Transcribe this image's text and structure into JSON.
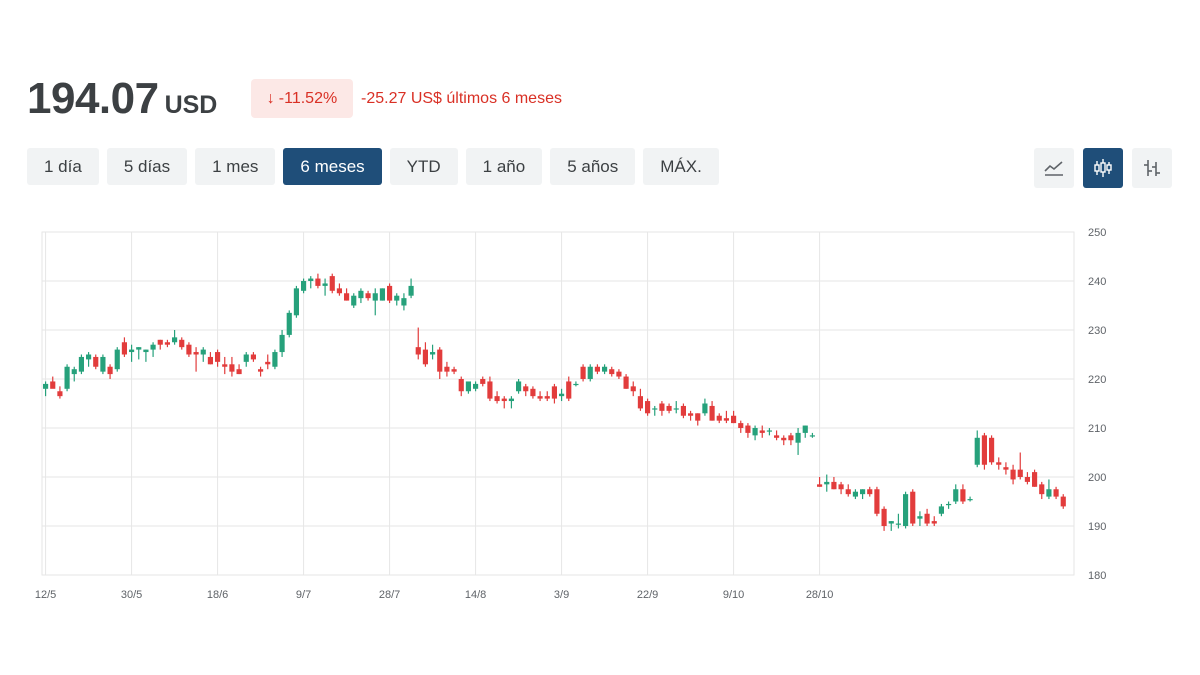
{
  "header": {
    "price": "194.07",
    "currency": "USD",
    "change_pct": "-11.52%",
    "change_text": "-25.27 US$ últimos 6 meses",
    "change_color": "#d93025"
  },
  "ranges": [
    "1 día",
    "5 días",
    "1 mes",
    "6 meses",
    "YTD",
    "1 año",
    "5 años",
    "MÁX."
  ],
  "active_range": "6 meses",
  "chart_types": [
    {
      "icon": "line-chart-icon",
      "active": false
    },
    {
      "icon": "candlestick-icon",
      "active": true
    },
    {
      "icon": "ohlc-bar-icon",
      "active": false
    }
  ],
  "colors": {
    "up": "#26a17b",
    "down": "#e23c3c",
    "accent": "#1f4e79",
    "grid": "#e6e6e6"
  },
  "chart_data": {
    "type": "candlestick",
    "y_ticks": [
      180,
      190,
      200,
      210,
      220,
      230,
      240,
      250
    ],
    "ylim": [
      180,
      250
    ],
    "x_ticks": [
      {
        "label": "12/5",
        "index": 0
      },
      {
        "label": "30/5",
        "index": 12
      },
      {
        "label": "18/6",
        "index": 24
      },
      {
        "label": "9/7",
        "index": 36
      },
      {
        "label": "28/7",
        "index": 48
      },
      {
        "label": "14/8",
        "index": 60
      },
      {
        "label": "3/9",
        "index": 72
      },
      {
        "label": "22/9",
        "index": 84
      },
      {
        "label": "9/10",
        "index": 96
      },
      {
        "label": "28/10",
        "index": 108
      }
    ],
    "candles": [
      [
        218.0,
        219.5,
        216.5,
        219.0
      ],
      [
        219.5,
        220.5,
        218.5,
        218.0
      ],
      [
        217.5,
        218.5,
        216.0,
        216.5
      ],
      [
        218.0,
        223.0,
        217.5,
        222.5
      ],
      [
        221.0,
        222.5,
        219.5,
        222.0
      ],
      [
        221.5,
        225.0,
        221.0,
        224.5
      ],
      [
        224.0,
        225.5,
        222.5,
        225.0
      ],
      [
        224.5,
        225.0,
        222.0,
        222.5
      ],
      [
        221.5,
        225.0,
        221.0,
        224.5
      ],
      [
        222.5,
        223.0,
        220.0,
        221.0
      ],
      [
        222.0,
        226.5,
        221.5,
        226.0
      ],
      [
        227.5,
        228.5,
        224.5,
        225.0
      ],
      [
        225.5,
        227.0,
        223.5,
        226.0
      ],
      [
        226.0,
        226.5,
        224.0,
        226.5
      ],
      [
        225.5,
        226.0,
        223.5,
        226.0
      ],
      [
        226.0,
        227.5,
        224.5,
        227.0
      ],
      [
        228.0,
        228.0,
        226.0,
        227.0
      ],
      [
        227.5,
        228.0,
        226.5,
        227.0
      ],
      [
        227.5,
        230.0,
        227.0,
        228.5
      ],
      [
        228.0,
        228.5,
        226.0,
        226.5
      ],
      [
        227.0,
        227.5,
        224.5,
        225.0
      ],
      [
        225.5,
        226.5,
        221.5,
        225.0
      ],
      [
        225.0,
        226.5,
        223.5,
        226.0
      ],
      [
        224.5,
        225.5,
        223.0,
        223.0
      ],
      [
        225.5,
        226.0,
        222.5,
        223.5
      ],
      [
        223.0,
        224.5,
        221.0,
        222.5
      ],
      [
        223.0,
        224.5,
        220.5,
        221.5
      ],
      [
        222.0,
        223.0,
        221.0,
        221.0
      ],
      [
        223.5,
        225.5,
        222.5,
        225.0
      ],
      [
        225.0,
        225.5,
        223.5,
        224.0
      ],
      [
        222.0,
        222.5,
        220.5,
        221.5
      ],
      [
        223.5,
        225.0,
        222.0,
        223.0
      ],
      [
        222.5,
        226.0,
        222.0,
        225.5
      ],
      [
        225.5,
        230.0,
        224.5,
        229.0
      ],
      [
        229.0,
        234.0,
        228.5,
        233.5
      ],
      [
        233.0,
        239.0,
        232.5,
        238.5
      ],
      [
        238.0,
        240.5,
        237.5,
        240.0
      ],
      [
        240.0,
        241.0,
        238.5,
        240.5
      ],
      [
        240.5,
        241.5,
        238.5,
        239.0
      ],
      [
        239.0,
        240.5,
        237.0,
        239.5
      ],
      [
        241.0,
        241.5,
        237.5,
        238.0
      ],
      [
        238.5,
        239.5,
        237.0,
        237.5
      ],
      [
        237.5,
        238.5,
        236.0,
        236.0
      ],
      [
        235.0,
        237.5,
        234.5,
        237.0
      ],
      [
        236.5,
        238.5,
        235.5,
        238.0
      ],
      [
        237.5,
        238.0,
        236.0,
        236.5
      ],
      [
        236.0,
        238.5,
        233.0,
        237.5
      ],
      [
        236.0,
        238.5,
        236.0,
        238.5
      ],
      [
        239.0,
        239.5,
        235.5,
        236.0
      ],
      [
        236.0,
        237.5,
        235.0,
        237.0
      ],
      [
        235.0,
        237.5,
        234.0,
        236.5
      ],
      [
        237.0,
        240.5,
        236.5,
        239.0
      ]
    ],
    "candles2": [
      [
        226.5,
        230.5,
        224.0,
        225.0
      ],
      [
        226.0,
        227.5,
        222.5,
        223.0
      ],
      [
        225.0,
        227.0,
        224.0,
        225.5
      ],
      [
        226.0,
        226.5,
        220.0,
        221.5
      ],
      [
        222.5,
        223.5,
        220.5,
        221.5
      ],
      [
        222.0,
        222.5,
        221.0,
        221.5
      ],
      [
        220.0,
        220.5,
        216.5,
        217.5
      ],
      [
        217.5,
        219.0,
        217.0,
        219.5
      ],
      [
        218.0,
        219.5,
        217.5,
        219.0
      ],
      [
        220.0,
        220.5,
        218.5,
        219.0
      ],
      [
        219.5,
        220.5,
        215.5,
        216.0
      ],
      [
        216.5,
        217.5,
        215.0,
        215.5
      ],
      [
        216.0,
        216.5,
        214.0,
        215.5
      ],
      [
        215.5,
        216.5,
        214.0,
        216.0
      ],
      [
        217.5,
        220.0,
        217.0,
        219.5
      ],
      [
        218.5,
        219.0,
        216.5,
        217.5
      ],
      [
        218.0,
        218.5,
        216.0,
        216.5
      ],
      [
        216.5,
        217.5,
        215.5,
        216.0
      ],
      [
        216.5,
        217.5,
        215.5,
        216.0
      ],
      [
        218.5,
        219.0,
        215.0,
        216.0
      ],
      [
        216.5,
        218.0,
        215.5,
        217.0
      ],
      [
        219.5,
        220.5,
        215.5,
        216.0
      ],
      [
        219.0,
        219.5,
        218.5,
        219.0
      ],
      [
        222.5,
        223.0,
        219.5,
        220.0
      ],
      [
        220.0,
        223.0,
        219.5,
        222.5
      ],
      [
        222.5,
        223.0,
        221.0,
        221.5
      ],
      [
        221.5,
        223.0,
        221.0,
        222.5
      ],
      [
        222.0,
        222.5,
        220.5,
        221.0
      ],
      [
        221.5,
        222.0,
        220.0,
        220.5
      ],
      [
        220.5,
        221.0,
        218.0,
        218.0
      ],
      [
        218.5,
        219.5,
        216.5,
        217.5
      ],
      [
        216.5,
        218.0,
        213.5,
        214.0
      ],
      [
        215.5,
        216.0,
        212.5,
        213.0
      ],
      [
        214.0,
        214.5,
        212.5,
        214.0
      ],
      [
        215.0,
        215.5,
        212.5,
        213.5
      ],
      [
        214.5,
        215.0,
        213.0,
        213.5
      ],
      [
        214.0,
        215.5,
        213.0,
        214.0
      ],
      [
        214.5,
        215.0,
        212.0,
        212.5
      ],
      [
        213.0,
        213.5,
        211.5,
        212.5
      ],
      [
        213.0,
        213.0,
        210.5,
        211.5
      ],
      [
        213.0,
        216.0,
        212.5,
        215.0
      ],
      [
        214.5,
        215.5,
        211.5,
        211.5
      ],
      [
        212.5,
        213.0,
        211.0,
        211.5
      ],
      [
        212.0,
        213.5,
        211.0,
        211.5
      ],
      [
        212.5,
        213.5,
        211.0,
        211.0
      ],
      [
        211.0,
        211.5,
        209.0,
        210.0
      ],
      [
        210.5,
        211.0,
        208.0,
        209.0
      ],
      [
        208.5,
        210.5,
        207.5,
        210.0
      ],
      [
        209.5,
        210.5,
        208.0,
        209.0
      ],
      [
        209.5,
        210.0,
        208.5,
        209.5
      ],
      [
        208.5,
        209.5,
        207.5,
        208.0
      ],
      [
        208.0,
        208.5,
        206.5,
        207.5
      ],
      [
        208.5,
        209.0,
        206.5,
        207.5
      ],
      [
        207.0,
        210.0,
        204.5,
        209.0
      ],
      [
        209.0,
        210.5,
        208.0,
        210.5
      ],
      [
        208.5,
        209.0,
        208.0,
        208.5
      ]
    ],
    "candles3": [
      [
        198.5,
        200.0,
        198.0,
        198.0
      ],
      [
        198.5,
        200.5,
        197.0,
        199.0
      ],
      [
        199.0,
        200.0,
        197.5,
        197.5
      ],
      [
        198.5,
        199.0,
        196.5,
        197.5
      ],
      [
        197.5,
        198.5,
        196.0,
        196.5
      ],
      [
        196.0,
        197.5,
        195.5,
        197.0
      ],
      [
        196.5,
        197.5,
        195.5,
        197.5
      ],
      [
        197.5,
        198.0,
        196.0,
        196.5
      ],
      [
        197.5,
        198.0,
        192.0,
        192.5
      ],
      [
        193.5,
        194.0,
        189.0,
        190.0
      ],
      [
        190.5,
        191.0,
        189.0,
        191.0
      ],
      [
        190.5,
        192.5,
        189.5,
        190.5
      ],
      [
        190.0,
        197.0,
        189.5,
        196.5
      ],
      [
        197.0,
        197.5,
        190.0,
        190.5
      ],
      [
        191.5,
        193.0,
        190.0,
        192.0
      ],
      [
        192.5,
        193.5,
        190.0,
        190.5
      ],
      [
        191.0,
        192.0,
        190.0,
        190.5
      ],
      [
        192.5,
        194.5,
        192.0,
        194.0
      ],
      [
        194.5,
        195.0,
        193.5,
        194.5
      ],
      [
        195.0,
        198.5,
        194.5,
        197.5
      ],
      [
        197.5,
        198.5,
        194.5,
        195.0
      ],
      [
        195.5,
        196.0,
        195.0,
        195.5
      ],
      [
        202.5,
        209.5,
        202.0,
        208.0
      ],
      [
        208.5,
        209.0,
        201.5,
        202.5
      ],
      [
        208.0,
        208.5,
        202.5,
        203.0
      ],
      [
        203.0,
        204.0,
        201.5,
        202.5
      ],
      [
        202.0,
        203.0,
        200.5,
        201.5
      ],
      [
        201.5,
        202.5,
        198.5,
        199.5
      ],
      [
        201.5,
        205.0,
        199.5,
        200.0
      ],
      [
        200.0,
        201.0,
        198.5,
        199.0
      ],
      [
        201.0,
        201.5,
        198.0,
        198.0
      ],
      [
        198.5,
        199.0,
        195.5,
        196.5
      ],
      [
        196.0,
        199.5,
        195.5,
        197.5
      ],
      [
        197.5,
        198.0,
        195.5,
        196.0
      ],
      [
        196.0,
        196.5,
        193.5,
        194.0
      ]
    ]
  }
}
